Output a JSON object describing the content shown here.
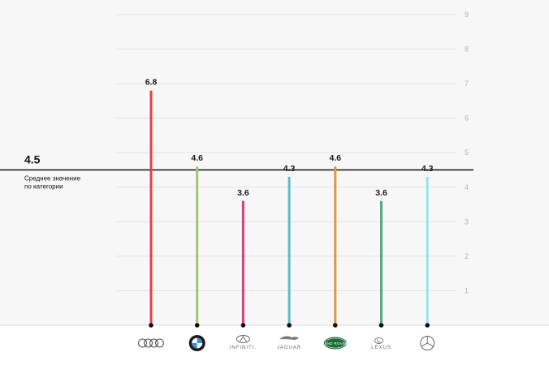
{
  "chart_data": {
    "type": "bar",
    "categories": [
      "Audi",
      "BMW",
      "Infiniti",
      "Jaguar",
      "Land Rover",
      "Lexus",
      "Mercedes-Benz"
    ],
    "values": [
      6.8,
      4.6,
      3.6,
      4.3,
      4.6,
      3.6,
      4.3
    ],
    "value_labels": [
      "6.8",
      "4.6",
      "3.6",
      "4.3",
      "4.6",
      "3.6",
      "4.3"
    ],
    "colors": [
      "#e04444",
      "#a3c76a",
      "#d23f85",
      "#5fbcc7",
      "#e0954a",
      "#5aaa7e",
      "#8ee7ee"
    ],
    "ylim": [
      0,
      9
    ],
    "yticks": [
      1,
      2,
      3,
      4,
      5,
      6,
      7,
      8,
      9
    ],
    "grid": true,
    "reference_line": {
      "value": 4.5,
      "label": "4.5",
      "caption_line1": "Среднее значение",
      "caption_line2": "по категории"
    },
    "logos": [
      {
        "icon": "audi-rings-icon",
        "text": ""
      },
      {
        "icon": "bmw-roundel-icon",
        "text": ""
      },
      {
        "icon": "infiniti-icon",
        "text": "INFINITI."
      },
      {
        "icon": "jaguar-icon",
        "text": "JAGUAR"
      },
      {
        "icon": "land-rover-icon",
        "text": "LAND ROVER"
      },
      {
        "icon": "lexus-icon",
        "text": "LEXUS"
      },
      {
        "icon": "mercedes-star-icon",
        "text": ""
      }
    ]
  }
}
